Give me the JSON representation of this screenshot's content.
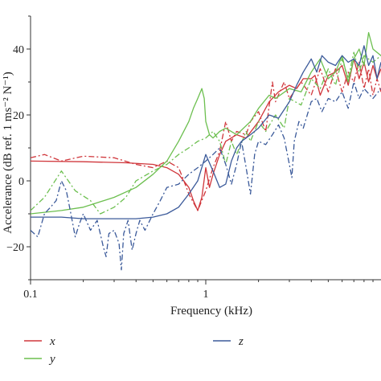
{
  "chart_data": {
    "type": "line",
    "xlabel": "Frequency (kHz)",
    "ylabel": "Accelerance (dB ref. 1 ms⁻² N⁻¹)",
    "x_scale": "log",
    "xlim": [
      0.1,
      10
    ],
    "ylim": [
      -30,
      50
    ],
    "x_ticks": [
      0.1,
      1
    ],
    "x_tick_labels": [
      "0.1",
      "1"
    ],
    "y_ticks": [
      -20,
      0,
      20,
      40
    ],
    "y_tick_labels": [
      "−20",
      "0",
      "20",
      "40"
    ],
    "grid": false,
    "legend_position": "bottom",
    "colors": {
      "x": "#d0363b",
      "y": "#6cbf4f",
      "z": "#3b5a9a"
    },
    "series": [
      {
        "name": "x",
        "style": "solid",
        "color": "#d0363b",
        "points": [
          [
            0.1,
            6
          ],
          [
            0.2,
            5.8
          ],
          [
            0.35,
            5.5
          ],
          [
            0.5,
            5
          ],
          [
            0.6,
            4
          ],
          [
            0.7,
            2
          ],
          [
            0.8,
            -2
          ],
          [
            0.85,
            -6
          ],
          [
            0.9,
            -9
          ],
          [
            0.95,
            -5
          ],
          [
            1.0,
            4
          ],
          [
            1.05,
            -2
          ],
          [
            1.1,
            2
          ],
          [
            1.2,
            8
          ],
          [
            1.3,
            12
          ],
          [
            1.5,
            14
          ],
          [
            1.7,
            13
          ],
          [
            2.0,
            18
          ],
          [
            2.3,
            24
          ],
          [
            2.6,
            27
          ],
          [
            3.0,
            29
          ],
          [
            3.3,
            28
          ],
          [
            3.6,
            31
          ],
          [
            4.0,
            31
          ],
          [
            4.2,
            32
          ],
          [
            4.5,
            26
          ],
          [
            5.0,
            32
          ],
          [
            5.5,
            33
          ],
          [
            6.0,
            35
          ],
          [
            6.5,
            29
          ],
          [
            7.0,
            37
          ],
          [
            7.5,
            31
          ],
          [
            8.0,
            36
          ],
          [
            8.5,
            30
          ],
          [
            9.0,
            35
          ],
          [
            9.5,
            31
          ],
          [
            10.0,
            34
          ]
        ]
      },
      {
        "name": "x",
        "style": "dashdot",
        "color": "#d0363b",
        "points": [
          [
            0.1,
            7
          ],
          [
            0.12,
            8
          ],
          [
            0.15,
            6
          ],
          [
            0.2,
            7.5
          ],
          [
            0.3,
            7
          ],
          [
            0.4,
            5
          ],
          [
            0.5,
            4
          ],
          [
            0.6,
            6
          ],
          [
            0.7,
            4
          ],
          [
            0.75,
            0
          ],
          [
            0.8,
            -4
          ],
          [
            0.9,
            -9
          ],
          [
            1.0,
            -3
          ],
          [
            1.1,
            4
          ],
          [
            1.2,
            9
          ],
          [
            1.3,
            18
          ],
          [
            1.4,
            12
          ],
          [
            1.5,
            15
          ],
          [
            1.7,
            14
          ],
          [
            1.8,
            18
          ],
          [
            2.0,
            21
          ],
          [
            2.2,
            15
          ],
          [
            2.4,
            30
          ],
          [
            2.5,
            24
          ],
          [
            2.8,
            30
          ],
          [
            3.0,
            25
          ],
          [
            3.5,
            30
          ],
          [
            4.0,
            26
          ],
          [
            4.5,
            34
          ],
          [
            5.0,
            27
          ],
          [
            5.5,
            34
          ],
          [
            6.0,
            27
          ],
          [
            6.5,
            33
          ],
          [
            7.0,
            30
          ],
          [
            7.5,
            36
          ],
          [
            8.0,
            28
          ],
          [
            8.5,
            34
          ],
          [
            9.0,
            26
          ],
          [
            9.5,
            31
          ],
          [
            10.0,
            27
          ]
        ]
      },
      {
        "name": "y",
        "style": "solid",
        "color": "#6cbf4f",
        "points": [
          [
            0.1,
            -10
          ],
          [
            0.15,
            -9
          ],
          [
            0.2,
            -8
          ],
          [
            0.3,
            -5
          ],
          [
            0.4,
            -2
          ],
          [
            0.5,
            2
          ],
          [
            0.6,
            6
          ],
          [
            0.7,
            12
          ],
          [
            0.8,
            18
          ],
          [
            0.85,
            22
          ],
          [
            0.9,
            25
          ],
          [
            0.95,
            28
          ],
          [
            0.98,
            25
          ],
          [
            1.0,
            18
          ],
          [
            1.05,
            14
          ],
          [
            1.1,
            13
          ],
          [
            1.2,
            15
          ],
          [
            1.3,
            16
          ],
          [
            1.5,
            14
          ],
          [
            1.8,
            18
          ],
          [
            2.0,
            22
          ],
          [
            2.3,
            26
          ],
          [
            2.5,
            25
          ],
          [
            3.0,
            28
          ],
          [
            3.5,
            27
          ],
          [
            4.0,
            33
          ],
          [
            4.5,
            37
          ],
          [
            5.0,
            31
          ],
          [
            5.5,
            33
          ],
          [
            6.0,
            38
          ],
          [
            6.5,
            30
          ],
          [
            7.0,
            37
          ],
          [
            7.5,
            40
          ],
          [
            8.0,
            35
          ],
          [
            8.5,
            45
          ],
          [
            9.0,
            40
          ],
          [
            10.0,
            38
          ]
        ]
      },
      {
        "name": "y",
        "style": "dashdot",
        "color": "#6cbf4f",
        "points": [
          [
            0.1,
            -9
          ],
          [
            0.12,
            -5
          ],
          [
            0.15,
            3
          ],
          [
            0.18,
            -3
          ],
          [
            0.22,
            -6
          ],
          [
            0.25,
            -10
          ],
          [
            0.3,
            -8
          ],
          [
            0.35,
            -5
          ],
          [
            0.4,
            0
          ],
          [
            0.5,
            3
          ],
          [
            0.6,
            5
          ],
          [
            0.7,
            8
          ],
          [
            0.8,
            10
          ],
          [
            0.9,
            12
          ],
          [
            1.0,
            13
          ],
          [
            1.1,
            15
          ],
          [
            1.2,
            12
          ],
          [
            1.3,
            5
          ],
          [
            1.4,
            12
          ],
          [
            1.5,
            8
          ],
          [
            1.7,
            15
          ],
          [
            1.8,
            12
          ],
          [
            2.0,
            18
          ],
          [
            2.2,
            15
          ],
          [
            2.5,
            20
          ],
          [
            2.8,
            16
          ],
          [
            3.0,
            25
          ],
          [
            3.5,
            23
          ],
          [
            4.0,
            31
          ],
          [
            4.5,
            28
          ],
          [
            5.0,
            34
          ],
          [
            5.5,
            29
          ],
          [
            6.0,
            37
          ],
          [
            6.5,
            31
          ],
          [
            7.0,
            39
          ],
          [
            7.5,
            33
          ],
          [
            8.0,
            38
          ],
          [
            9.0,
            36
          ],
          [
            10.0,
            38
          ]
        ]
      },
      {
        "name": "z",
        "style": "solid",
        "color": "#3b5a9a",
        "points": [
          [
            0.1,
            -11
          ],
          [
            0.15,
            -11
          ],
          [
            0.2,
            -11.5
          ],
          [
            0.3,
            -11.5
          ],
          [
            0.4,
            -11.5
          ],
          [
            0.5,
            -11
          ],
          [
            0.6,
            -10
          ],
          [
            0.7,
            -8
          ],
          [
            0.8,
            -4
          ],
          [
            0.9,
            0
          ],
          [
            1.0,
            8
          ],
          [
            1.1,
            3
          ],
          [
            1.2,
            -2
          ],
          [
            1.3,
            -1
          ],
          [
            1.4,
            6
          ],
          [
            1.5,
            10
          ],
          [
            1.6,
            12
          ],
          [
            1.8,
            14
          ],
          [
            2.0,
            16
          ],
          [
            2.3,
            20
          ],
          [
            2.6,
            19
          ],
          [
            3.0,
            24
          ],
          [
            3.3,
            29
          ],
          [
            3.6,
            33
          ],
          [
            4.0,
            37
          ],
          [
            4.3,
            33
          ],
          [
            4.6,
            38
          ],
          [
            5.0,
            36
          ],
          [
            5.5,
            35
          ],
          [
            6.0,
            38
          ],
          [
            6.5,
            36
          ],
          [
            7.0,
            37
          ],
          [
            7.5,
            35
          ],
          [
            8.0,
            41
          ],
          [
            8.5,
            35
          ],
          [
            9.0,
            38
          ],
          [
            9.5,
            31
          ],
          [
            10.0,
            36
          ]
        ]
      },
      {
        "name": "z",
        "style": "dashdot",
        "color": "#3b5a9a",
        "points": [
          [
            0.1,
            -15
          ],
          [
            0.11,
            -17
          ],
          [
            0.12,
            -10
          ],
          [
            0.13,
            -8
          ],
          [
            0.14,
            -6
          ],
          [
            0.15,
            0
          ],
          [
            0.16,
            -3
          ],
          [
            0.17,
            -10
          ],
          [
            0.18,
            -17
          ],
          [
            0.19,
            -13
          ],
          [
            0.2,
            -10
          ],
          [
            0.22,
            -15
          ],
          [
            0.24,
            -12
          ],
          [
            0.26,
            -20
          ],
          [
            0.27,
            -23
          ],
          [
            0.28,
            -16
          ],
          [
            0.3,
            -15
          ],
          [
            0.32,
            -19
          ],
          [
            0.33,
            -27
          ],
          [
            0.34,
            -16
          ],
          [
            0.36,
            -12
          ],
          [
            0.38,
            -21
          ],
          [
            0.4,
            -16
          ],
          [
            0.42,
            -12
          ],
          [
            0.45,
            -15
          ],
          [
            0.5,
            -10
          ],
          [
            0.55,
            -6
          ],
          [
            0.6,
            -2
          ],
          [
            0.7,
            -1
          ],
          [
            0.8,
            2
          ],
          [
            0.9,
            4
          ],
          [
            1.0,
            6
          ],
          [
            1.1,
            8
          ],
          [
            1.2,
            10
          ],
          [
            1.3,
            5
          ],
          [
            1.4,
            -1
          ],
          [
            1.5,
            5
          ],
          [
            1.6,
            12
          ],
          [
            1.7,
            4
          ],
          [
            1.8,
            -4
          ],
          [
            1.9,
            8
          ],
          [
            2.0,
            12
          ],
          [
            2.2,
            11
          ],
          [
            2.4,
            14
          ],
          [
            2.6,
            17
          ],
          [
            2.8,
            13
          ],
          [
            3.0,
            5
          ],
          [
            3.1,
            1
          ],
          [
            3.2,
            12
          ],
          [
            3.4,
            18
          ],
          [
            3.6,
            16
          ],
          [
            4.0,
            24
          ],
          [
            4.3,
            25
          ],
          [
            4.6,
            21
          ],
          [
            5.0,
            25
          ],
          [
            5.5,
            24
          ],
          [
            6.0,
            27
          ],
          [
            6.5,
            22
          ],
          [
            7.0,
            30
          ],
          [
            7.5,
            25
          ],
          [
            8.0,
            28
          ],
          [
            9.0,
            25
          ],
          [
            10.0,
            28
          ]
        ]
      }
    ],
    "legend": [
      {
        "label": "x",
        "color": "#d0363b"
      },
      {
        "label": "y",
        "color": "#6cbf4f"
      },
      {
        "label": "z",
        "color": "#3b5a9a"
      }
    ]
  }
}
